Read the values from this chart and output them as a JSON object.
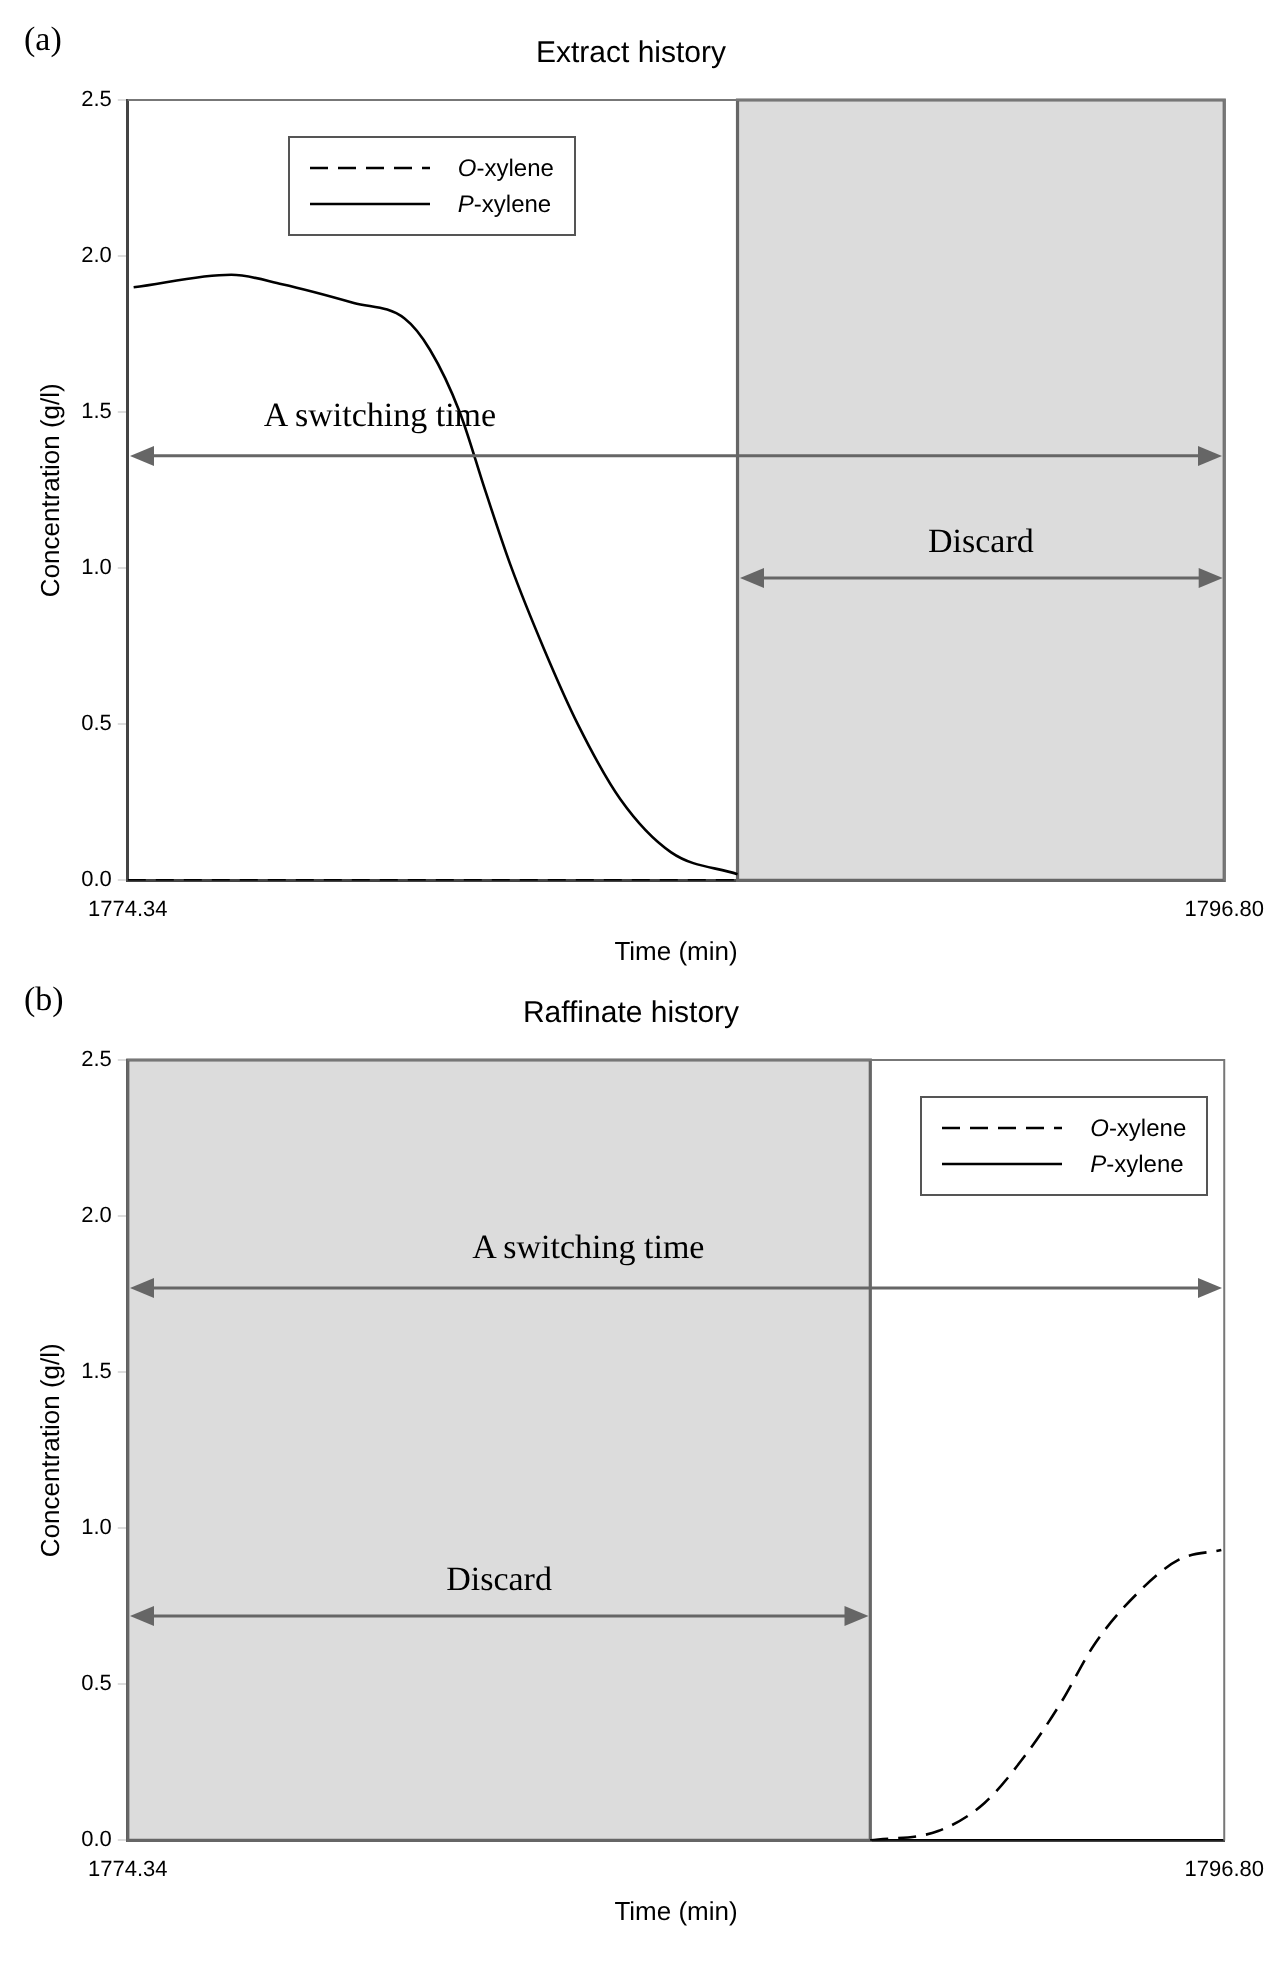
{
  "chart_data": [
    {
      "type": "line",
      "title": "Extract history",
      "xlabel": "Time (min)",
      "ylabel": "Concentration (g/l)",
      "xlim": [
        1774.34,
        1796.8
      ],
      "xticks": [
        1774.34,
        {
          "value": 1796.8,
          "label": "1796.80"
        }
      ],
      "ylim": [
        0,
        2.5
      ],
      "yticks": [
        {
          "value": 0,
          "label": "0.0"
        },
        {
          "value": 0.5,
          "label": "0.5"
        },
        {
          "value": 1,
          "label": "1.0"
        },
        {
          "value": 1.5,
          "label": "1.5"
        },
        {
          "value": 2,
          "label": "2.0"
        },
        {
          "value": 2.5,
          "label": "2.5"
        }
      ],
      "grid": false,
      "legend": "top left",
      "marker": "none",
      "bands": [
        {
          "axis": "x",
          "from": 1786.83,
          "to": 1796.8,
          "color": "#dcdcdc"
        }
      ],
      "annotations": [
        "(a)",
        "Discard"
      ],
      "ref_lines": [
        {
          "axis": "y",
          "value": 1.36,
          "label": "A switching time",
          "color": "#666666"
        }
      ],
      "series": [
        {
          "name": "O-xylene",
          "color": "#000000",
          "line_style": "dashed",
          "x": [
            1774.34,
            1786.83
          ],
          "values": [
            0,
            0
          ]
        },
        {
          "name": "P-xylene",
          "color": "#000000",
          "line_style": "solid",
          "x": [
            1774.46,
            1776.46,
            1777.5,
            1778.97,
            1780.01,
            1780.53,
            1781.14,
            1781.66,
            1782.18,
            1782.87,
            1783.56,
            1784.43,
            1785.47,
            1786.83
          ],
          "values": [
            1.9,
            1.94,
            1.91,
            1.85,
            1.8,
            1.7,
            1.5,
            1.25,
            1.01,
            0.74,
            0.5,
            0.26,
            0.09,
            0.02
          ]
        }
      ]
    },
    {
      "type": "line",
      "title": "Raffinate history",
      "xlabel": "Time (min)",
      "ylabel": "Concentration (g/l)",
      "xlim": [
        1774.34,
        1796.8
      ],
      "xticks": [
        1774.34,
        {
          "value": 1796.8,
          "label": "1796.80"
        }
      ],
      "ylim": [
        0,
        2.5
      ],
      "yticks": [
        {
          "value": 0,
          "label": "0.0"
        },
        {
          "value": 0.5,
          "label": "0.5"
        },
        {
          "value": 1,
          "label": "1.0"
        },
        {
          "value": 1.5,
          "label": "1.5"
        },
        {
          "value": 2,
          "label": "2.0"
        },
        {
          "value": 2.5,
          "label": "2.5"
        }
      ],
      "grid": false,
      "legend": "top right",
      "marker": "none",
      "bands": [
        {
          "axis": "x",
          "from": 1774.34,
          "to": 1789.55,
          "color": "#dcdcdc"
        }
      ],
      "annotations": [
        "(b)",
        "Discard"
      ],
      "ref_lines": [
        {
          "axis": "y",
          "value": 1.77,
          "label": "A switching time",
          "color": "#666666"
        }
      ],
      "series": [
        {
          "name": "O-xylene",
          "color": "#000000",
          "line_style": "dashed",
          "x": [
            1789.55,
            1790.94,
            1791.89,
            1792.76,
            1793.45,
            1794.15,
            1795.01,
            1795.88,
            1796.74
          ],
          "values": [
            0,
            0.03,
            0.12,
            0.28,
            0.44,
            0.63,
            0.79,
            0.9,
            0.93
          ]
        },
        {
          "name": "P-xylene",
          "color": "#000000",
          "line_style": "solid",
          "x": [
            1789.55,
            1796.8
          ],
          "values": [
            0,
            0
          ]
        }
      ]
    }
  ]
}
